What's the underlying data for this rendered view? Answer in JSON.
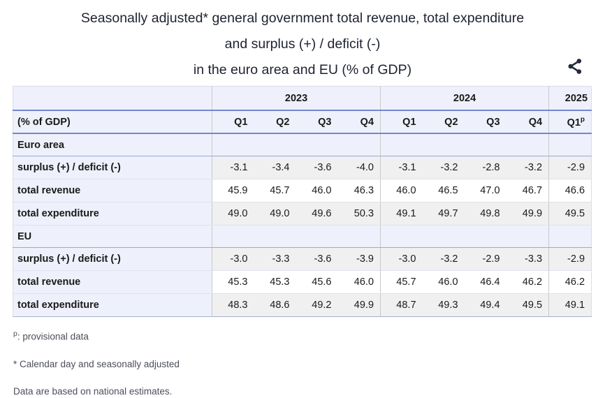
{
  "title": {
    "line1": "Seasonally adjusted* general government total revenue, total expenditure",
    "line2": "and surplus (+) / deficit (-)",
    "line3": "in the euro area and EU (% of GDP)"
  },
  "share": {
    "icon": "share-icon",
    "color": "#262b3b"
  },
  "colors": {
    "header_border_blue": "#7286d0",
    "section_border_blue": "#98a7dd",
    "header_bg_lavender": "#eef1fb",
    "stripe_gray": "#f0f0f0",
    "column_separator": "#c9c9c9",
    "text": "#1a1a1a",
    "footnote_text": "#4b4f58"
  },
  "table": {
    "corner_label": "(% of GDP)",
    "year_groups": [
      {
        "label": "2023",
        "quarters": [
          "Q1",
          "Q2",
          "Q3",
          "Q4"
        ]
      },
      {
        "label": "2024",
        "quarters": [
          "Q1",
          "Q2",
          "Q3",
          "Q4"
        ]
      },
      {
        "label": "2025",
        "quarters": [
          "Q1"
        ],
        "superscript": "p"
      }
    ],
    "sections": [
      {
        "label": "Euro area",
        "rows": [
          {
            "label": "surplus (+) / deficit (-)",
            "values": [
              "-3.1",
              "-3.4",
              "-3.6",
              "-4.0",
              "-3.1",
              "-3.2",
              "-2.8",
              "-3.2",
              "-2.9"
            ]
          },
          {
            "label": "total revenue",
            "values": [
              "45.9",
              "45.7",
              "46.0",
              "46.3",
              "46.0",
              "46.5",
              "47.0",
              "46.7",
              "46.6"
            ]
          },
          {
            "label": "total expenditure",
            "values": [
              "49.0",
              "49.0",
              "49.6",
              "50.3",
              "49.1",
              "49.7",
              "49.8",
              "49.9",
              "49.5"
            ]
          }
        ]
      },
      {
        "label": "EU",
        "rows": [
          {
            "label": "surplus (+) / deficit (-)",
            "values": [
              "-3.0",
              "-3.3",
              "-3.6",
              "-3.9",
              "-3.0",
              "-3.2",
              "-2.9",
              "-3.3",
              "-2.9"
            ]
          },
          {
            "label": "total revenue",
            "values": [
              "45.3",
              "45.3",
              "45.6",
              "46.0",
              "45.7",
              "46.0",
              "46.4",
              "46.2",
              "46.2"
            ]
          },
          {
            "label": "total expenditure",
            "values": [
              "48.3",
              "48.6",
              "49.2",
              "49.9",
              "48.7",
              "49.3",
              "49.4",
              "49.5",
              "49.1"
            ]
          }
        ]
      }
    ]
  },
  "footnotes": [
    {
      "sup": "p",
      "text": ": provisional data"
    },
    {
      "text": "* Calendar day and seasonally adjusted"
    },
    {
      "text": "Data are based on national estimates."
    }
  ],
  "chart_data": {
    "type": "table",
    "title": "Seasonally adjusted* general government total revenue, total expenditure and surplus (+) / deficit (-) in the euro area and EU (% of GDP)",
    "unit": "% of GDP",
    "columns": [
      "2023-Q1",
      "2023-Q2",
      "2023-Q3",
      "2023-Q4",
      "2024-Q1",
      "2024-Q2",
      "2024-Q3",
      "2024-Q4",
      "2025-Q1p"
    ],
    "series": [
      {
        "group": "Euro area",
        "name": "surplus (+) / deficit (-)",
        "values": [
          -3.1,
          -3.4,
          -3.6,
          -4.0,
          -3.1,
          -3.2,
          -2.8,
          -3.2,
          -2.9
        ]
      },
      {
        "group": "Euro area",
        "name": "total revenue",
        "values": [
          45.9,
          45.7,
          46.0,
          46.3,
          46.0,
          46.5,
          47.0,
          46.7,
          46.6
        ]
      },
      {
        "group": "Euro area",
        "name": "total expenditure",
        "values": [
          49.0,
          49.0,
          49.6,
          50.3,
          49.1,
          49.7,
          49.8,
          49.9,
          49.5
        ]
      },
      {
        "group": "EU",
        "name": "surplus (+) / deficit (-)",
        "values": [
          -3.0,
          -3.3,
          -3.6,
          -3.9,
          -3.0,
          -3.2,
          -2.9,
          -3.3,
          -2.9
        ]
      },
      {
        "group": "EU",
        "name": "total revenue",
        "values": [
          45.3,
          45.3,
          45.6,
          46.0,
          45.7,
          46.0,
          46.4,
          46.2,
          46.2
        ]
      },
      {
        "group": "EU",
        "name": "total expenditure",
        "values": [
          48.3,
          48.6,
          49.2,
          49.9,
          48.7,
          49.3,
          49.4,
          49.5,
          49.1
        ]
      }
    ],
    "notes": [
      "p: provisional data",
      "* Calendar day and seasonally adjusted",
      "Data are based on national estimates."
    ]
  }
}
